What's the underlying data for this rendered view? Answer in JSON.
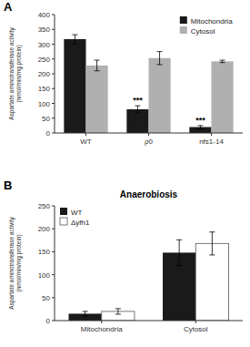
{
  "chart_data": [
    {
      "type": "bar",
      "panel_label": "A",
      "ylabel": "Aspartate aminotransferase activity\n(nmol/min/mg protein)",
      "categories": [
        "WT",
        "ρ0",
        "nfs1-14"
      ],
      "series": [
        {
          "name": "Mitochondria",
          "color": "#1a1a1a",
          "values": [
            317,
            80,
            20
          ],
          "errors": [
            15,
            12,
            5
          ]
        },
        {
          "name": "Cytosol",
          "color": "#b0b0b0",
          "values": [
            228,
            253,
            242
          ],
          "errors": [
            18,
            22,
            4
          ]
        }
      ],
      "annotations": [
        {
          "text": "***",
          "category": "ρ0",
          "series": "Mitochondria"
        },
        {
          "text": "***",
          "category": "nfs1-14",
          "series": "Mitochondria"
        }
      ],
      "ylim": [
        0,
        400
      ],
      "yticks": [
        0,
        50,
        100,
        150,
        200,
        250,
        300,
        350,
        400
      ],
      "legend": "upper right",
      "grid": false
    },
    {
      "type": "bar",
      "panel_label": "B",
      "title": "Anaerobiosis",
      "ylabel": "Aspartate aminotransferase activity\n(nmol/min/mg protein)",
      "categories": [
        "Mitochondria",
        "Cytosol"
      ],
      "series": [
        {
          "name": "WT",
          "color": "#1a1a1a",
          "values": [
            15,
            148
          ],
          "errors": [
            5,
            28
          ]
        },
        {
          "name": "Δyfh1",
          "color": "#ffffff",
          "edge_color": "#555555",
          "values": [
            20,
            168
          ],
          "errors": [
            6,
            25
          ]
        }
      ],
      "ylim": [
        0,
        250
      ],
      "yticks": [
        0,
        50,
        100,
        150,
        200,
        250
      ],
      "legend": "upper left",
      "grid": false
    }
  ]
}
